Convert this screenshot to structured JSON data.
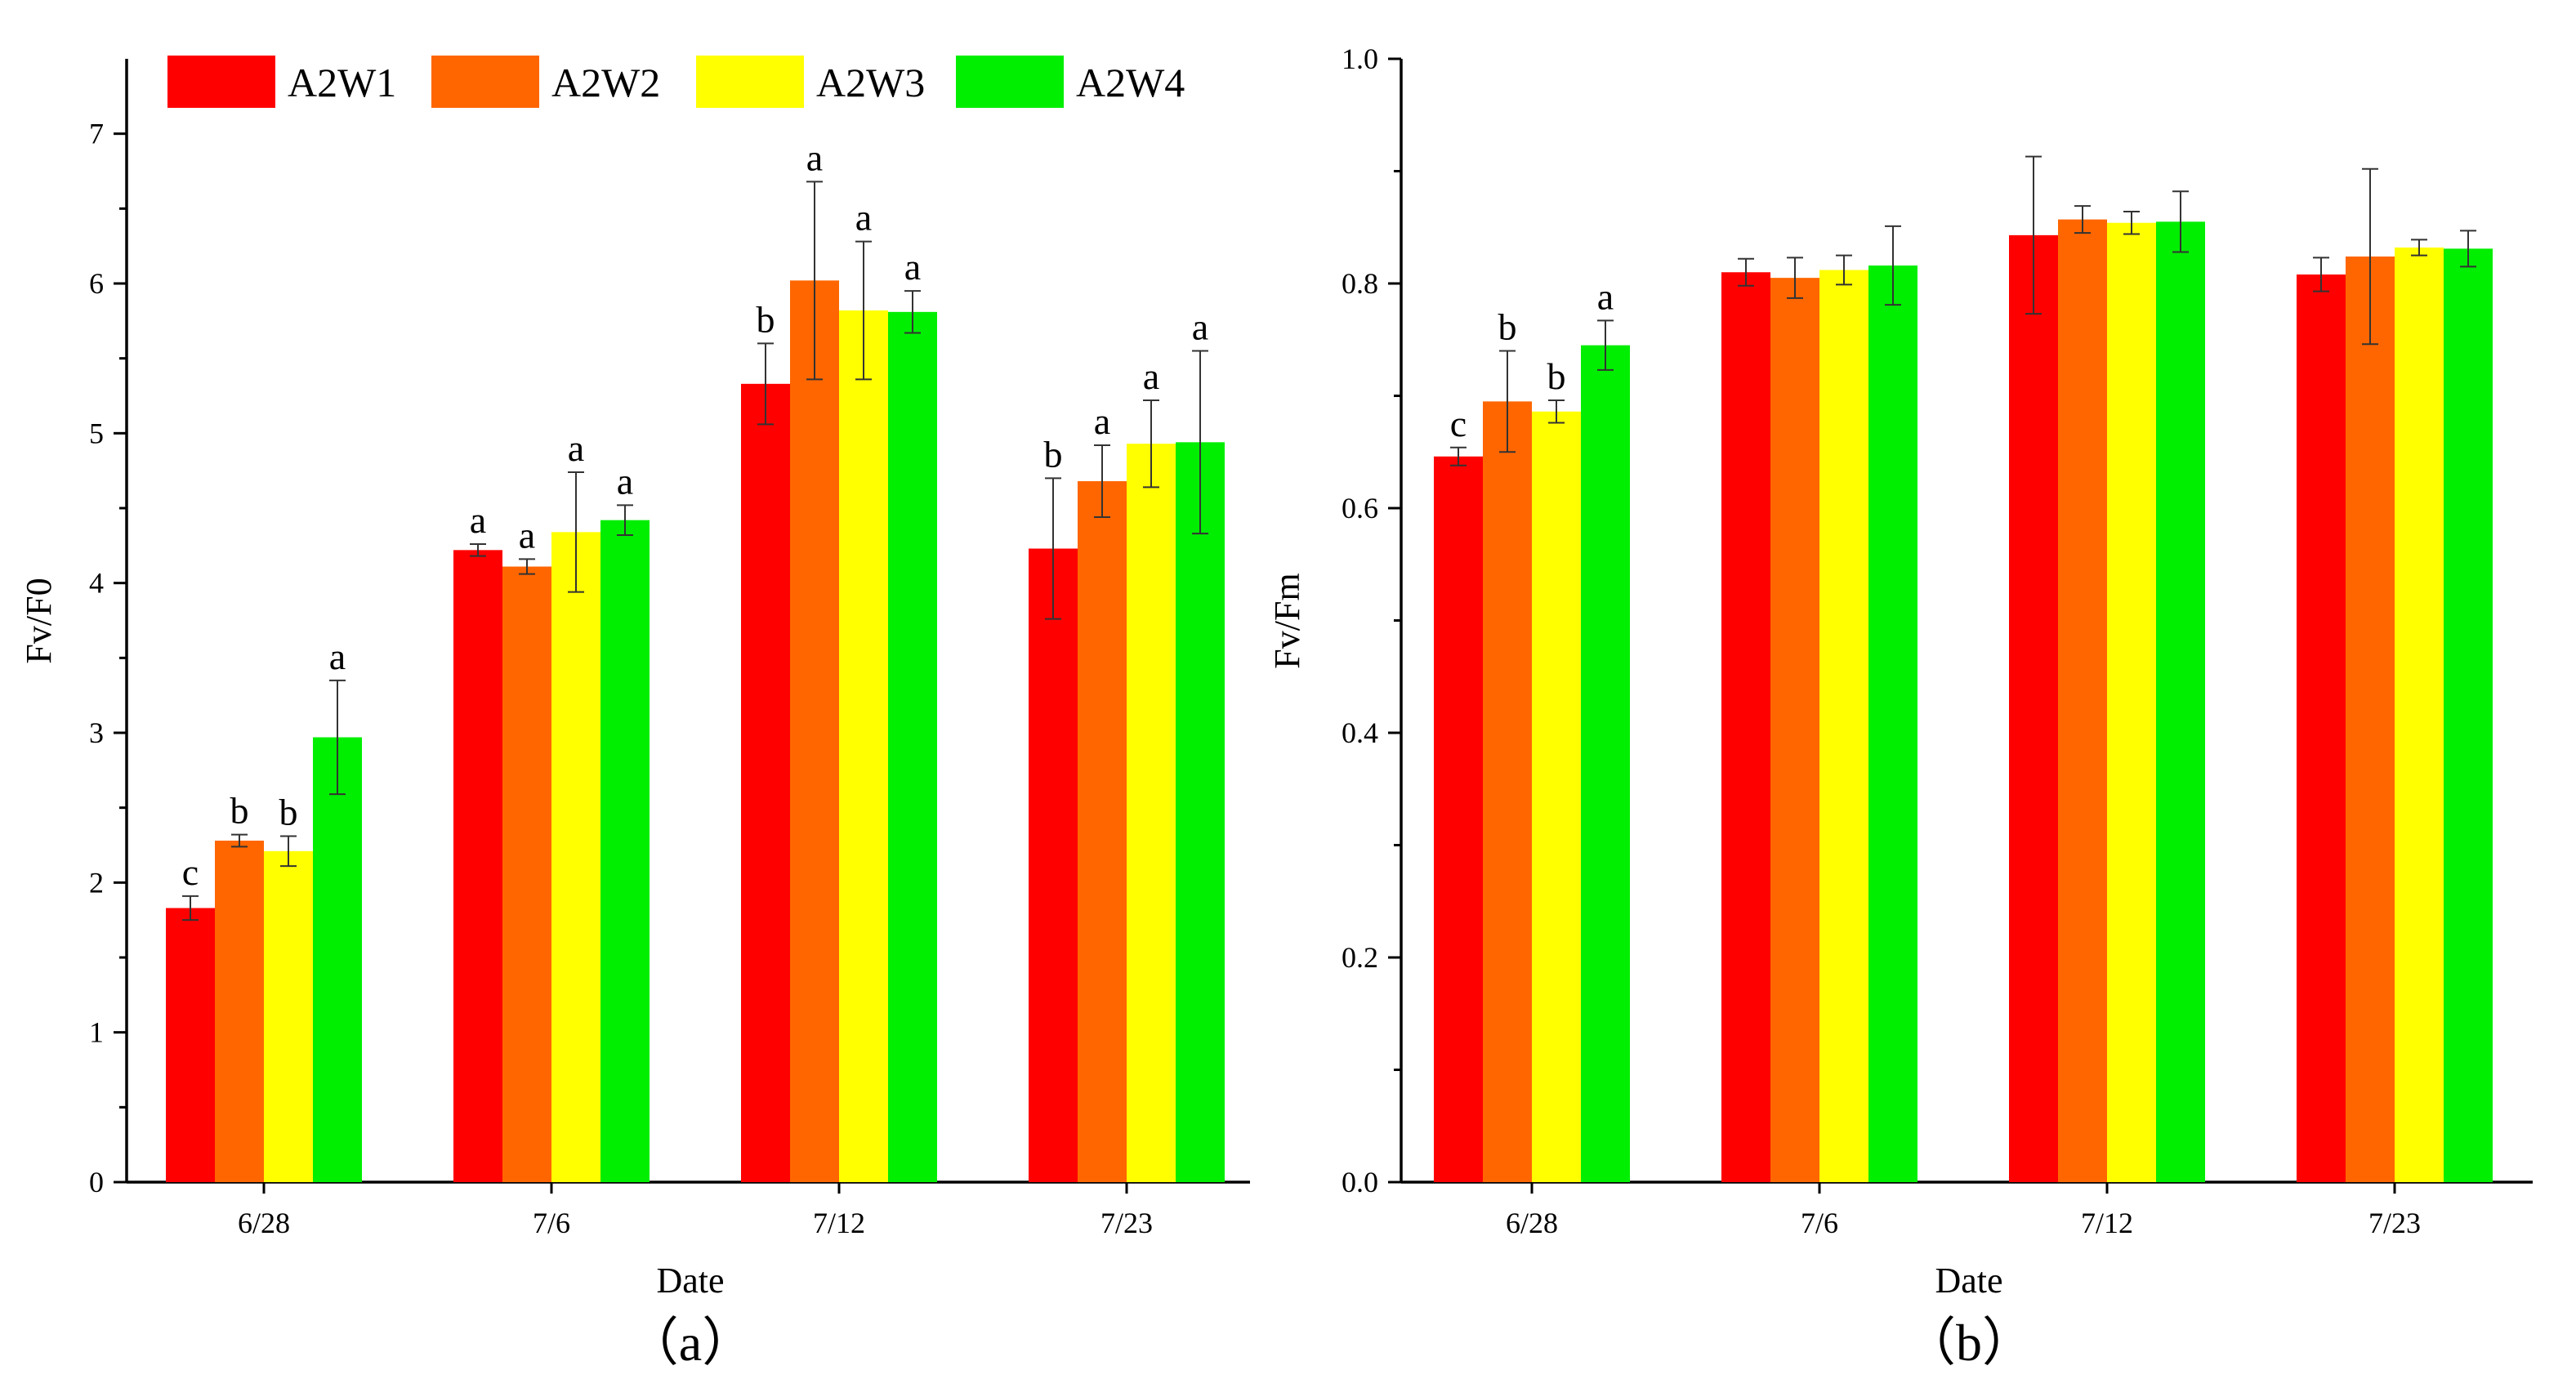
{
  "colors": {
    "A2W1": "#FF0000",
    "A2W2": "#FF6600",
    "A2W3": "#FFFF00",
    "A2W4": "#00EE00",
    "axis": "#000000"
  },
  "legend": [
    "A2W1",
    "A2W2",
    "A2W3",
    "A2W4"
  ],
  "chart_data": [
    {
      "type": "bar",
      "panel": "a",
      "caption": "（a）",
      "title": "",
      "xlabel": "Date",
      "ylabel": "Fv/F0",
      "ylim": [
        0,
        7.5
      ],
      "yticks": [
        "0",
        "1",
        "2",
        "3",
        "4",
        "5",
        "6",
        "7"
      ],
      "categories": [
        "6/28",
        "7/6",
        "7/12",
        "7/23"
      ],
      "legend_position": "top",
      "series": [
        {
          "name": "A2W1",
          "values": [
            1.83,
            4.22,
            5.33,
            4.23
          ],
          "errors": [
            0.08,
            0.04,
            0.27,
            0.47
          ],
          "letters": [
            "c",
            "a",
            "b",
            "b"
          ]
        },
        {
          "name": "A2W2",
          "values": [
            2.28,
            4.11,
            6.02,
            4.68
          ],
          "errors": [
            0.04,
            0.05,
            0.66,
            0.24
          ],
          "letters": [
            "b",
            "a",
            "a",
            "a"
          ]
        },
        {
          "name": "A2W3",
          "values": [
            2.21,
            4.34,
            5.82,
            4.93
          ],
          "errors": [
            0.1,
            0.4,
            0.46,
            0.29
          ],
          "letters": [
            "b",
            "a",
            "a",
            "a"
          ]
        },
        {
          "name": "A2W4",
          "values": [
            2.97,
            4.42,
            5.81,
            4.94
          ],
          "errors": [
            0.38,
            0.1,
            0.14,
            0.61
          ],
          "letters": [
            "a",
            "a",
            "a",
            "a"
          ]
        }
      ]
    },
    {
      "type": "bar",
      "panel": "b",
      "caption": "（b）",
      "title": "",
      "xlabel": "Date",
      "ylabel": "Fv/Fm",
      "ylim": [
        0,
        1.0
      ],
      "yticks": [
        "0.0",
        "0.2",
        "0.4",
        "0.6",
        "0.8",
        "1.0"
      ],
      "categories": [
        "6/28",
        "7/6",
        "7/12",
        "7/23"
      ],
      "series": [
        {
          "name": "A2W1",
          "values": [
            0.646,
            0.81,
            0.843,
            0.808
          ],
          "errors": [
            0.008,
            0.012,
            0.07,
            0.015
          ],
          "letters": [
            "c",
            "",
            "",
            ""
          ]
        },
        {
          "name": "A2W2",
          "values": [
            0.695,
            0.805,
            0.857,
            0.824
          ],
          "errors": [
            0.045,
            0.018,
            0.012,
            0.078
          ],
          "letters": [
            "b",
            "",
            "",
            ""
          ]
        },
        {
          "name": "A2W3",
          "values": [
            0.686,
            0.812,
            0.854,
            0.832
          ],
          "errors": [
            0.01,
            0.013,
            0.01,
            0.007
          ],
          "letters": [
            "b",
            "",
            "",
            ""
          ]
        },
        {
          "name": "A2W4",
          "values": [
            0.745,
            0.816,
            0.855,
            0.831
          ],
          "errors": [
            0.022,
            0.035,
            0.027,
            0.016
          ],
          "letters": [
            "a",
            "",
            "",
            ""
          ]
        }
      ]
    }
  ]
}
